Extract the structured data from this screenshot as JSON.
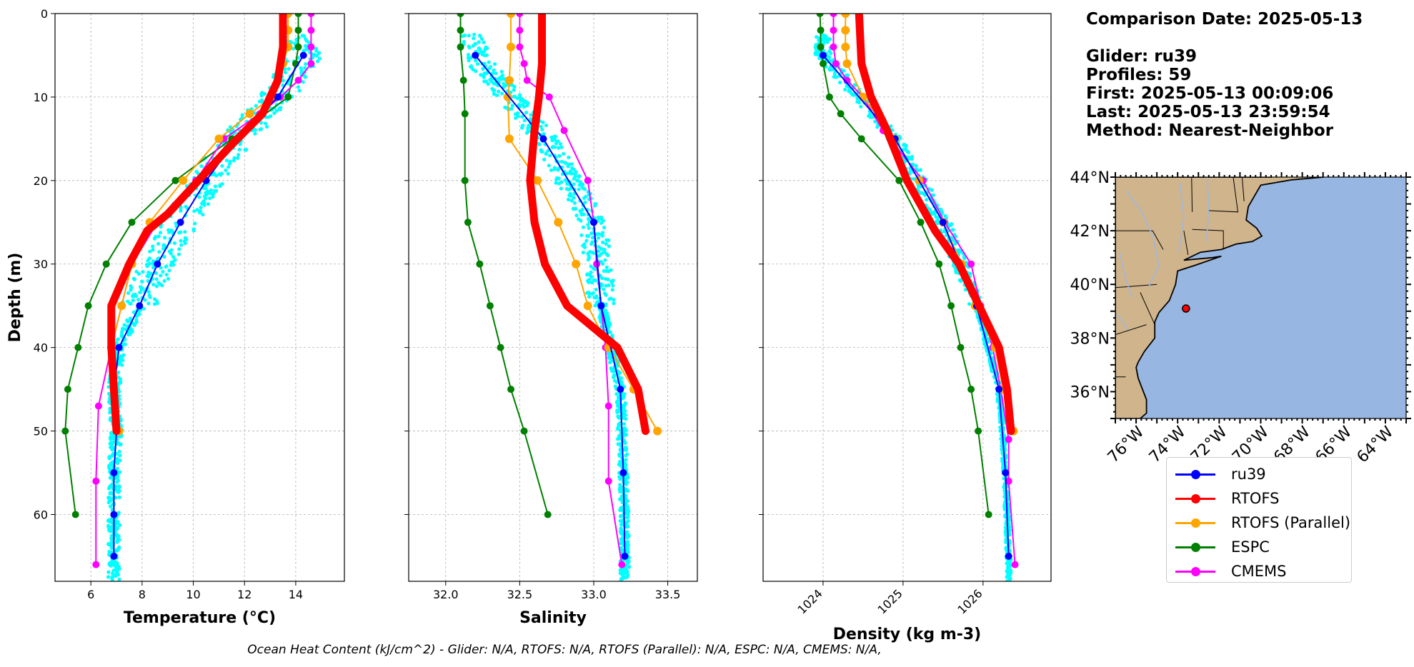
{
  "chart_data": [
    {
      "type": "line",
      "xlabel": "Temperature (°C)",
      "ylabel": "Depth (m)",
      "xlim": [
        4.6,
        15.9
      ],
      "ylim": [
        68,
        0
      ],
      "xticks": [
        6,
        8,
        10,
        12,
        14
      ],
      "yticks": [
        0,
        10,
        20,
        30,
        40,
        50,
        60
      ],
      "grid": true,
      "series": [
        {
          "name": "ru39",
          "color": "#0000ff",
          "width": 2,
          "marker": 5,
          "points": [
            [
              14.3,
              5
            ],
            [
              13.3,
              10
            ],
            [
              11.7,
              15
            ],
            [
              10.5,
              20
            ],
            [
              9.5,
              25
            ],
            [
              8.6,
              30
            ],
            [
              7.9,
              35
            ],
            [
              7.1,
              40
            ],
            [
              6.9,
              45
            ],
            [
              7.0,
              50
            ],
            [
              6.9,
              55
            ],
            [
              6.9,
              60
            ],
            [
              6.9,
              65
            ]
          ]
        },
        {
          "name": "RTOFS",
          "color": "#ff0000",
          "width": 11,
          "marker": 4,
          "points": [
            [
              13.5,
              0
            ],
            [
              13.5,
              4
            ],
            [
              13.3,
              8
            ],
            [
              12.7,
              12
            ],
            [
              11.4,
              16
            ],
            [
              10.2,
              20
            ],
            [
              9.0,
              24
            ],
            [
              8.2,
              26
            ],
            [
              7.5,
              30
            ],
            [
              6.8,
              35
            ],
            [
              6.8,
              40
            ],
            [
              6.9,
              45
            ],
            [
              7.0,
              50
            ]
          ]
        },
        {
          "name": "RTOFS (Parallel)",
          "color": "#ffa500",
          "width": 2,
          "marker": 6,
          "points": [
            [
              13.7,
              0
            ],
            [
              13.7,
              2
            ],
            [
              13.7,
              4
            ],
            [
              13.5,
              6
            ],
            [
              13.1,
              10
            ],
            [
              12.2,
              12
            ],
            [
              11.0,
              15
            ],
            [
              9.6,
              20
            ],
            [
              8.3,
              25
            ],
            [
              7.6,
              30
            ],
            [
              7.2,
              35
            ],
            [
              6.8,
              40
            ],
            [
              6.9,
              45
            ],
            [
              7.1,
              50
            ]
          ]
        },
        {
          "name": "ESPC",
          "color": "#008000",
          "width": 2,
          "marker": 5,
          "points": [
            [
              14.1,
              0
            ],
            [
              14.1,
              2
            ],
            [
              14.1,
              4
            ],
            [
              14.0,
              6
            ],
            [
              13.7,
              10
            ],
            [
              11.5,
              15
            ],
            [
              9.3,
              20
            ],
            [
              7.6,
              25
            ],
            [
              6.6,
              30
            ],
            [
              5.9,
              35
            ],
            [
              5.5,
              40
            ],
            [
              5.1,
              45
            ],
            [
              5.0,
              50
            ],
            [
              5.4,
              60
            ]
          ]
        },
        {
          "name": "CMEMS",
          "color": "#ff00ff",
          "width": 2,
          "marker": 5,
          "points": [
            [
              14.6,
              0
            ],
            [
              14.6,
              2
            ],
            [
              14.6,
              4
            ],
            [
              14.6,
              6
            ],
            [
              14.1,
              8
            ],
            [
              13.4,
              10
            ],
            [
              12.6,
              12
            ],
            [
              11.2,
              15
            ],
            [
              10.1,
              20
            ],
            [
              8.6,
              25
            ],
            [
              7.6,
              30
            ],
            [
              7.2,
              35
            ],
            [
              6.8,
              40
            ],
            [
              6.3,
              47
            ],
            [
              6.2,
              56
            ],
            [
              6.2,
              66
            ]
          ]
        }
      ]
    },
    {
      "type": "line",
      "xlabel": "Salinity",
      "ylabel": "",
      "xlim": [
        31.75,
        33.7
      ],
      "ylim": [
        68,
        0
      ],
      "xticks": [
        32.0,
        32.5,
        33.0,
        33.5
      ],
      "yticks": [
        0,
        10,
        20,
        30,
        40,
        50,
        60
      ],
      "grid": true,
      "series": [
        {
          "name": "ru39",
          "color": "#0000ff",
          "width": 2,
          "marker": 5,
          "points": [
            [
              32.2,
              5
            ],
            [
              32.66,
              15
            ],
            [
              33.0,
              25
            ],
            [
              33.05,
              35
            ],
            [
              33.18,
              45
            ],
            [
              33.2,
              55
            ],
            [
              33.21,
              65
            ]
          ]
        },
        {
          "name": "RTOFS",
          "color": "#ff0000",
          "width": 11,
          "marker": 4,
          "points": [
            [
              32.65,
              0
            ],
            [
              32.65,
              6
            ],
            [
              32.63,
              10
            ],
            [
              32.6,
              14
            ],
            [
              32.57,
              20
            ],
            [
              32.6,
              25
            ],
            [
              32.67,
              30
            ],
            [
              32.82,
              35
            ],
            [
              33.16,
              40
            ],
            [
              33.3,
              45
            ],
            [
              33.35,
              50
            ]
          ]
        },
        {
          "name": "RTOFS (Parallel)",
          "color": "#ffa500",
          "width": 2,
          "marker": 6,
          "points": [
            [
              32.44,
              0
            ],
            [
              32.44,
              4
            ],
            [
              32.43,
              8
            ],
            [
              32.42,
              10
            ],
            [
              32.43,
              15
            ],
            [
              32.62,
              20
            ],
            [
              32.76,
              25
            ],
            [
              32.88,
              30
            ],
            [
              32.96,
              35
            ],
            [
              33.1,
              40
            ],
            [
              33.27,
              45
            ],
            [
              33.43,
              50
            ]
          ]
        },
        {
          "name": "ESPC",
          "color": "#008000",
          "width": 2,
          "marker": 5,
          "points": [
            [
              32.1,
              0
            ],
            [
              32.1,
              2
            ],
            [
              32.1,
              4
            ],
            [
              32.12,
              8
            ],
            [
              32.13,
              12
            ],
            [
              32.13,
              20
            ],
            [
              32.15,
              25
            ],
            [
              32.23,
              30
            ],
            [
              32.3,
              35
            ],
            [
              32.37,
              40
            ],
            [
              32.44,
              45
            ],
            [
              32.53,
              50
            ],
            [
              32.69,
              60
            ]
          ]
        },
        {
          "name": "CMEMS",
          "color": "#ff00ff",
          "width": 2,
          "marker": 5,
          "points": [
            [
              32.5,
              0
            ],
            [
              32.5,
              2
            ],
            [
              32.5,
              4
            ],
            [
              32.53,
              6
            ],
            [
              32.55,
              8
            ],
            [
              32.7,
              10
            ],
            [
              32.8,
              14
            ],
            [
              32.96,
              20
            ],
            [
              33.0,
              25
            ],
            [
              33.02,
              30
            ],
            [
              33.05,
              35
            ],
            [
              33.08,
              40
            ],
            [
              33.1,
              47
            ],
            [
              33.1,
              56
            ],
            [
              33.19,
              66
            ]
          ]
        }
      ]
    },
    {
      "type": "line",
      "xlabel": "Density (kg m-3)",
      "ylabel": "",
      "xlim": [
        1023.25,
        1026.85
      ],
      "ylim": [
        68,
        0
      ],
      "xticks": [
        1024,
        1025,
        1026
      ],
      "yticks": [
        0,
        10,
        20,
        30,
        40,
        50,
        60
      ],
      "grid": true,
      "series": [
        {
          "name": "ru39",
          "color": "#0000ff",
          "width": 2,
          "marker": 5,
          "points": [
            [
              1024.0,
              5
            ],
            [
              1024.9,
              15
            ],
            [
              1025.5,
              25
            ],
            [
              1025.92,
              35
            ],
            [
              1026.2,
              45
            ],
            [
              1026.28,
              55
            ],
            [
              1026.32,
              65
            ]
          ]
        },
        {
          "name": "RTOFS",
          "color": "#ff0000",
          "width": 11,
          "marker": 4,
          "points": [
            [
              1024.45,
              0
            ],
            [
              1024.48,
              6
            ],
            [
              1024.6,
              10
            ],
            [
              1024.8,
              14
            ],
            [
              1025.05,
              20
            ],
            [
              1025.4,
              26
            ],
            [
              1025.7,
              30
            ],
            [
              1025.95,
              35
            ],
            [
              1026.2,
              40
            ],
            [
              1026.3,
              45
            ],
            [
              1026.35,
              50
            ]
          ]
        },
        {
          "name": "RTOFS (Parallel)",
          "color": "#ffa500",
          "width": 2,
          "marker": 6,
          "points": [
            [
              1024.28,
              0
            ],
            [
              1024.28,
              2
            ],
            [
              1024.28,
              4
            ],
            [
              1024.3,
              6
            ],
            [
              1024.5,
              10
            ],
            [
              1024.9,
              15
            ],
            [
              1025.2,
              20
            ],
            [
              1025.5,
              25
            ],
            [
              1025.73,
              30
            ],
            [
              1025.9,
              35
            ],
            [
              1026.15,
              40
            ],
            [
              1026.25,
              45
            ],
            [
              1026.38,
              50
            ]
          ]
        },
        {
          "name": "ESPC",
          "color": "#008000",
          "width": 2,
          "marker": 5,
          "points": [
            [
              1023.96,
              0
            ],
            [
              1023.97,
              2
            ],
            [
              1023.97,
              4
            ],
            [
              1024.0,
              6
            ],
            [
              1024.08,
              10
            ],
            [
              1024.22,
              12
            ],
            [
              1024.48,
              15
            ],
            [
              1024.95,
              20
            ],
            [
              1025.22,
              25
            ],
            [
              1025.45,
              30
            ],
            [
              1025.6,
              35
            ],
            [
              1025.72,
              40
            ],
            [
              1025.85,
              45
            ],
            [
              1025.94,
              50
            ],
            [
              1026.07,
              60
            ]
          ]
        },
        {
          "name": "CMEMS",
          "color": "#ff00ff",
          "width": 2,
          "marker": 5,
          "points": [
            [
              1024.13,
              0
            ],
            [
              1024.13,
              2
            ],
            [
              1024.13,
              4
            ],
            [
              1024.16,
              6
            ],
            [
              1024.3,
              8
            ],
            [
              1024.5,
              10
            ],
            [
              1024.75,
              14
            ],
            [
              1025.25,
              20
            ],
            [
              1025.52,
              25
            ],
            [
              1025.85,
              30
            ],
            [
              1025.97,
              35
            ],
            [
              1026.12,
              40
            ],
            [
              1026.22,
              45
            ],
            [
              1026.32,
              51
            ],
            [
              1026.32,
              56
            ],
            [
              1026.4,
              66
            ]
          ]
        }
      ]
    }
  ],
  "info": {
    "lines": [
      "Comparison Date: 2025-05-13",
      "",
      "Glider: ru39",
      "Profiles: 59",
      "First: 2025-05-13 00:09:06",
      "Last: 2025-05-13 23:59:54",
      "Method: Nearest-Neighbor"
    ]
  },
  "map": {
    "lat_labels": [
      "44°N",
      "42°N",
      "40°N",
      "38°N",
      "36°N"
    ],
    "lon_labels": [
      "76°W",
      "74°W",
      "72°W",
      "70°W",
      "68°W",
      "66°W",
      "64°W"
    ],
    "ocean_color": "#97b6e1",
    "land_color": "#d0b48c",
    "glider_color": "#ff0000"
  },
  "legend": {
    "items": [
      {
        "label": "ru39",
        "color": "#0000ff"
      },
      {
        "label": "RTOFS",
        "color": "#ff0000"
      },
      {
        "label": "RTOFS (Parallel)",
        "color": "#ffa500"
      },
      {
        "label": "ESPC",
        "color": "#008000"
      },
      {
        "label": "CMEMS",
        "color": "#ff00ff"
      }
    ]
  },
  "footer": "Ocean Heat Content (kJ/cm^2) - Glider: N/A,  RTOFS: N/A,  RTOFS (Parallel): N/A,  ESPC: N/A,  CMEMS: N/A,",
  "glider_color": "#00ffff"
}
